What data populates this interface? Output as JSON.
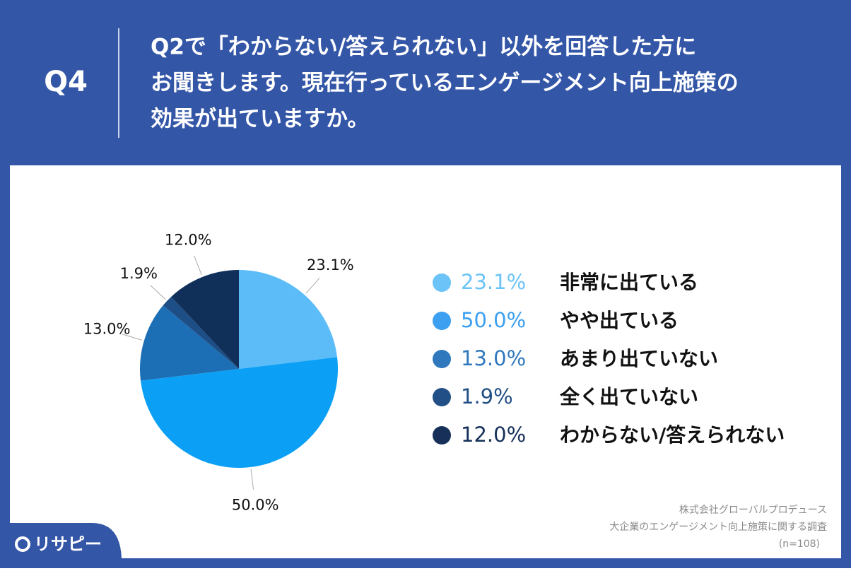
{
  "header": {
    "label": "Q4",
    "lines": [
      "Q2で「わからない/答えられない」以外を回答した方に",
      "お聞きします。現在行っているエンゲージメント向上施策の",
      "効果が出ていますか。"
    ]
  },
  "chart_data": {
    "type": "pie",
    "categories": [
      "非常に出ている",
      "やや出ている",
      "あまり出ていない",
      "全く出ていない",
      "わからない/答えられない"
    ],
    "values": [
      23.1,
      50.0,
      13.0,
      1.9,
      12.0
    ],
    "value_labels": [
      "23.1%",
      "50.0%",
      "13.0%",
      "1.9%",
      "12.0%"
    ],
    "colors": [
      "#5bbcf8",
      "#0ba0f6",
      "#1c6fb4",
      "#1d4e86",
      "#10305a"
    ],
    "legend_colors": [
      "#6cc3f7",
      "#3c9ff0",
      "#2f78bd",
      "#224f86",
      "#16305a"
    ]
  },
  "footer": {
    "source": [
      "株式会社グローバルプロデュース",
      "大企業のエンゲージメント向上施策に関する調査"
    ],
    "n": "(n=108)",
    "logo": "リサピー"
  }
}
